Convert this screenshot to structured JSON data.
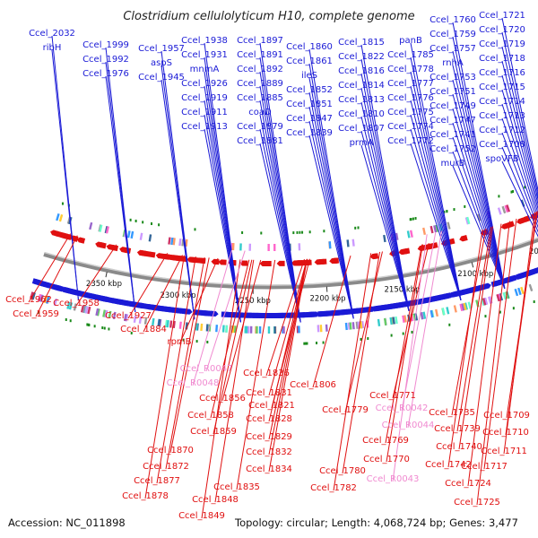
{
  "title": "Clostridium cellulolyticum H10, complete genome",
  "accession": "Accession: NC_011898",
  "summary": "Topology: circular; Length: 4,068,724 bp; Genes: 3,477",
  "colors": {
    "forward_gene": "#1a1ad6",
    "reverse_gene": "#e01010",
    "rna_gene": "#f08ad0",
    "tick_dot": "#1a8a1a",
    "backbone": "#8a8a8a"
  },
  "kbp_ticks": [
    "2350 kbp",
    "2300 kbp",
    "2250 kbp",
    "2200 kbp",
    "2150 kbp",
    "2100 kbp",
    "2050 kbp"
  ],
  "forward_labels": [
    "Ccel_2032",
    "ribH",
    "Ccel_1999",
    "Ccel_1992",
    "Ccel_1976",
    "Ccel_1957",
    "aspS",
    "Ccel_1945",
    "Ccel_1938",
    "Ccel_1931",
    "mnmA",
    "Ccel_1926",
    "Ccel_1919",
    "Ccel_1911",
    "Ccel_1913",
    "Ccel_1897",
    "Ccel_1891",
    "Ccel_1892",
    "Ccel_1889",
    "Ccel_1885",
    "coaD",
    "Ccel_1879",
    "Ccel_1881",
    "Ccel_1860",
    "Ccel_1861",
    "ileS",
    "Ccel_1852",
    "Ccel_1851",
    "Ccel_1847",
    "Ccel_1839",
    "Ccel_1815",
    "Ccel_1822",
    "Ccel_1816",
    "Ccel_1814",
    "Ccel_1813",
    "Ccel_1810",
    "Ccel_1807",
    "prmA",
    "panB",
    "Ccel_1785",
    "Ccel_1778",
    "Ccel_1777",
    "Ccel_1776",
    "Ccel_1775",
    "Ccel_1774",
    "Ccel_1772",
    "Ccel_1760",
    "Ccel_1759",
    "Ccel_1757",
    "rnhA",
    "Ccel_1753",
    "Ccel_1751",
    "Ccel_1749",
    "Ccel_1747",
    "Ccel_1741",
    "Ccel_1752",
    "murB",
    "Ccel_1721",
    "Ccel_1720",
    "Ccel_1719",
    "Ccel_1718",
    "Ccel_1716",
    "Ccel_1715",
    "Ccel_1714",
    "Ccel_1713",
    "Ccel_1712",
    "Ccel_1708",
    "spoVFB"
  ],
  "reverse_labels": [
    "Ccel_1962",
    "Ccel_1959",
    "Ccel_1958",
    "Ccel_1927",
    "Ccel_1884",
    "rpmB",
    "Ccel_1836",
    "Ccel_1831",
    "Ccel_1821",
    "Ccel_1856",
    "Ccel_1858",
    "Ccel_1828",
    "Ccel_1859",
    "Ccel_1829",
    "Ccel_1870",
    "Ccel_1832",
    "Ccel_1872",
    "Ccel_1834",
    "Ccel_1877",
    "Ccel_1835",
    "Ccel_1878",
    "Ccel_1848",
    "Ccel_1849",
    "Ccel_1806",
    "Ccel_1771",
    "Ccel_1779",
    "Ccel_1769",
    "Ccel_1770",
    "Ccel_1780",
    "Ccel_1782",
    "Ccel_1735",
    "Ccel_1739",
    "Ccel_1740",
    "Ccel_1742",
    "Ccel_1724",
    "Ccel_1725",
    "Ccel_1709",
    "Ccel_1710",
    "Ccel_1711",
    "Ccel_1717"
  ],
  "rna_labels": [
    "Ccel_R0047",
    "Ccel_R0048",
    "Ccel_R0042",
    "Ccel_R0044",
    "Ccel_R0043"
  ]
}
